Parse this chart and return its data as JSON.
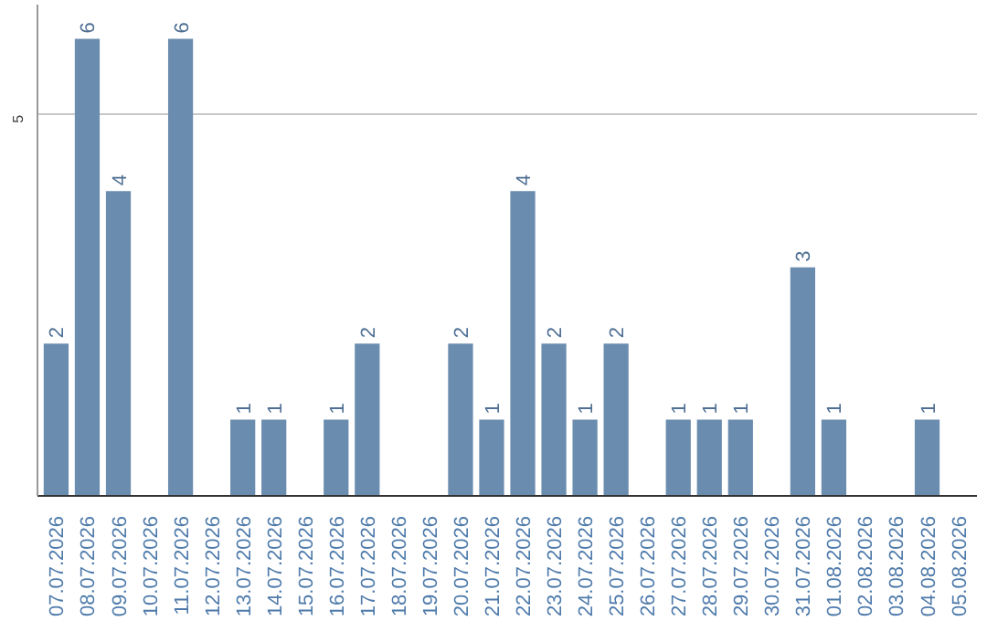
{
  "chart_data": {
    "type": "bar",
    "categories": [
      "07.07.2026",
      "08.07.2026",
      "09.07.2026",
      "10.07.2026",
      "11.07.2026",
      "12.07.2026",
      "13.07.2026",
      "14.07.2026",
      "15.07.2026",
      "16.07.2026",
      "17.07.2026",
      "18.07.2026",
      "19.07.2026",
      "20.07.2026",
      "21.07.2026",
      "22.07.2026",
      "23.07.2026",
      "24.07.2026",
      "25.07.2026",
      "26.07.2026",
      "27.07.2026",
      "28.07.2026",
      "29.07.2026",
      "30.07.2026",
      "31.07.2026",
      "01.08.2026",
      "02.08.2026",
      "03.08.2026",
      "04.08.2026",
      "05.08.2026"
    ],
    "values": [
      2,
      6,
      4,
      0,
      6,
      0,
      1,
      1,
      0,
      1,
      2,
      0,
      0,
      2,
      1,
      4,
      2,
      1,
      2,
      0,
      1,
      1,
      1,
      0,
      3,
      1,
      0,
      0,
      1,
      0
    ],
    "value_labels": [
      "2",
      "6",
      "4",
      null,
      "6",
      null,
      "1",
      "1",
      null,
      "1",
      "2",
      null,
      null,
      "2",
      "1",
      "4",
      "2",
      "1",
      "2",
      null,
      "1",
      "1",
      "1",
      null,
      "3",
      "1",
      null,
      null,
      "1",
      null
    ],
    "color": "#6a8cae",
    "ylim": [
      0,
      6.45
    ],
    "yticks": [
      5
    ],
    "grid": "y"
  }
}
